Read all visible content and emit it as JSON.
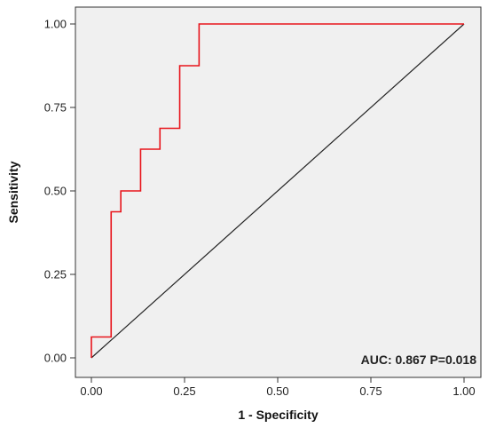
{
  "chart_data": {
    "type": "line",
    "title": "",
    "xlabel": "1 - Specificity",
    "ylabel": "Sensitivity",
    "xlim": [
      0,
      1
    ],
    "ylim": [
      0,
      1
    ],
    "x_ticks": [
      "0.00",
      "0.25",
      "0.50",
      "0.75",
      "1.00"
    ],
    "y_ticks": [
      "0.00",
      "0.25",
      "0.50",
      "0.75",
      "1.00"
    ],
    "x_tick_values": [
      0,
      0.25,
      0.5,
      0.75,
      1
    ],
    "y_tick_values": [
      0,
      0.25,
      0.5,
      0.75,
      1
    ],
    "grid": false,
    "series": [
      {
        "color": "#e8141b",
        "step": true,
        "x": [
          0,
          0,
          0.053,
          0.053,
          0.079,
          0.079,
          0.132,
          0.132,
          0.184,
          0.184,
          0.237,
          0.237,
          0.289,
          0.289,
          1.0
        ],
        "y": [
          0,
          0.0625,
          0.0625,
          0.4375,
          0.4375,
          0.5,
          0.5,
          0.625,
          0.625,
          0.6875,
          0.6875,
          0.875,
          0.875,
          1.0,
          1.0
        ]
      },
      {
        "color": "#222222",
        "x": [
          0,
          1
        ],
        "y": [
          0,
          1
        ]
      }
    ],
    "annotation": "AUC: 0.867 P=0.018",
    "background": "#f0f0f0"
  }
}
